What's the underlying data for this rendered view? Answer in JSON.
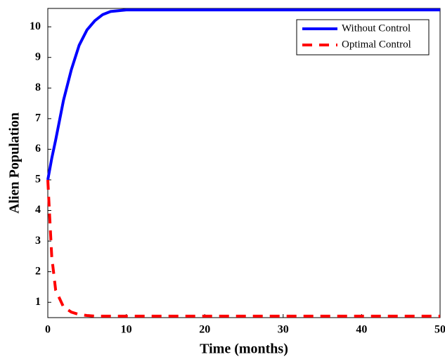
{
  "chart_data": {
    "type": "line",
    "xlabel": "Time (months)",
    "ylabel": "Alien Population",
    "x": [
      0,
      0.5,
      1,
      2,
      3,
      4,
      5,
      6,
      7,
      8,
      10,
      12,
      15,
      20,
      30,
      40,
      50
    ],
    "series": [
      {
        "name": "Without Control",
        "color": "#0000ff",
        "dash": "solid",
        "values": [
          5,
          5.7,
          6.3,
          7.6,
          8.6,
          9.4,
          9.9,
          10.2,
          10.4,
          10.5,
          10.55,
          10.55,
          10.55,
          10.55,
          10.55,
          10.55,
          10.55
        ]
      },
      {
        "name": "Optimal Control",
        "color": "#ff0000",
        "dash": "dashed",
        "values": [
          5,
          2.5,
          1.4,
          0.85,
          0.68,
          0.6,
          0.57,
          0.55,
          0.55,
          0.55,
          0.55,
          0.55,
          0.55,
          0.55,
          0.55,
          0.55,
          0.55
        ]
      }
    ],
    "xlim": [
      0,
      50
    ],
    "xticks": [
      0,
      10,
      20,
      30,
      40,
      50
    ],
    "ylim": [
      0.5,
      10.6
    ],
    "yticks": [
      1,
      2,
      3,
      4,
      5,
      6,
      7,
      8,
      9,
      10
    ],
    "legend": "upper-right"
  }
}
